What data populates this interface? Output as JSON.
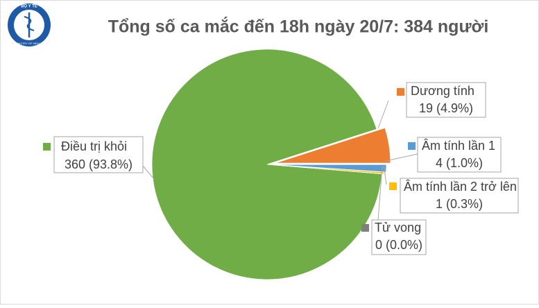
{
  "logo": {
    "top": "BỘ Y TẾ",
    "bottom": "MINISTRY OF HEALTH"
  },
  "chart_data": {
    "type": "pie",
    "title": "Tổng số ca mắc đến 18h ngày 20/7: 384 người",
    "categories": [
      "Điều trị khỏi",
      "Dương tính",
      "Âm tính lần 1",
      "Âm tính lần 2 trở lên",
      "Tử vong"
    ],
    "values": [
      360,
      19,
      4,
      1,
      0
    ],
    "value_labels": [
      "360 (93.8%)",
      "19 (4.9%)",
      "4 (1.0%)",
      "1 (0.3%)",
      "0 (0.0%)"
    ],
    "colors": [
      "#70ad47",
      "#ed7d31",
      "#5b9bd5",
      "#ffc000",
      "#7f7f7f"
    ]
  }
}
